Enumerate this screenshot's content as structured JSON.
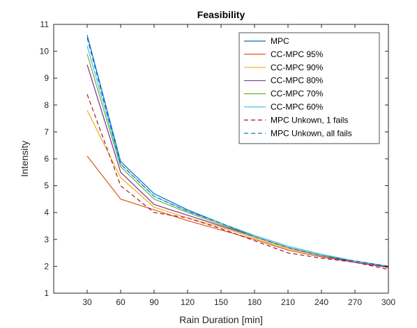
{
  "chart_data": {
    "type": "line",
    "title": "Feasibility",
    "xlabel": "Rain Duration [min]",
    "ylabel": "Intensity",
    "xlim": [
      0,
      300
    ],
    "ylim": [
      1,
      11
    ],
    "xticks": [
      30,
      60,
      90,
      120,
      150,
      180,
      210,
      240,
      270,
      300
    ],
    "yticks": [
      1,
      2,
      3,
      4,
      5,
      6,
      7,
      8,
      9,
      10,
      11
    ],
    "grid": false,
    "legend_position": "top-right",
    "x": [
      30,
      60,
      90,
      120,
      150,
      180,
      210,
      240,
      270,
      300
    ],
    "series": [
      {
        "name": "MPC",
        "color": "#0072bd",
        "dash": "solid",
        "values": [
          10.6,
          5.9,
          4.7,
          4.1,
          3.6,
          3.1,
          2.7,
          2.4,
          2.2,
          2.0
        ]
      },
      {
        "name": "CC-MPC 95%",
        "color": "#d95319",
        "dash": "solid",
        "values": [
          6.1,
          4.5,
          4.1,
          3.7,
          3.35,
          3.0,
          2.6,
          2.35,
          2.15,
          1.95
        ]
      },
      {
        "name": "CC-MPC 90%",
        "color": "#edb120",
        "dash": "solid",
        "values": [
          7.8,
          5.3,
          4.2,
          3.8,
          3.45,
          3.05,
          2.65,
          2.4,
          2.15,
          1.98
        ]
      },
      {
        "name": "CC-MPC 80%",
        "color": "#7e2f8e",
        "dash": "solid",
        "values": [
          9.5,
          5.5,
          4.3,
          3.9,
          3.5,
          3.1,
          2.7,
          2.4,
          2.15,
          1.97
        ]
      },
      {
        "name": "CC-MPC 70%",
        "color": "#77ac30",
        "dash": "solid",
        "values": [
          9.9,
          5.7,
          4.5,
          4.0,
          3.55,
          3.1,
          2.7,
          2.4,
          2.2,
          2.0
        ]
      },
      {
        "name": "CC-MPC 60%",
        "color": "#4dbeee",
        "dash": "solid",
        "values": [
          10.2,
          5.8,
          4.6,
          4.05,
          3.6,
          3.15,
          2.75,
          2.45,
          2.2,
          2.0
        ]
      },
      {
        "name": "MPC Unkown, 1 fails",
        "color": "#a2142f",
        "dash": "dashed",
        "values": [
          8.4,
          5.0,
          4.0,
          3.8,
          3.4,
          2.95,
          2.5,
          2.3,
          2.15,
          1.88
        ]
      },
      {
        "name": "MPC Unkown, all fails",
        "color": "#0072bd",
        "dash": "dashed",
        "values": [
          10.5,
          5.8,
          4.6,
          4.05,
          3.6,
          3.1,
          2.7,
          2.4,
          2.2,
          2.0
        ]
      }
    ]
  }
}
